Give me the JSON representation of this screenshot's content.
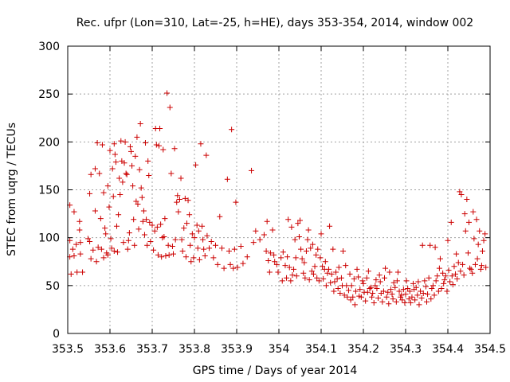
{
  "chart_data": {
    "type": "scatter",
    "title": "Rec. ufpr (Lon=310, Lat=-25, h=HE), days 353-354, 2014, window 002",
    "xlabel": "GPS time / Days of year 2014",
    "ylabel": "STEC from uqrg / TECUs",
    "xlim": [
      353.5,
      354.5
    ],
    "ylim": [
      0,
      300
    ],
    "xticks": [
      "353.5",
      "353.6",
      "353.7",
      "353.8",
      "353.9",
      "354",
      "354.1",
      "354.2",
      "354.3",
      "354.4",
      "354.5"
    ],
    "yticks": [
      "0",
      "50",
      "100",
      "150",
      "200",
      "250",
      "300"
    ],
    "grid": true,
    "marker": "+",
    "color": "#cc0000",
    "points": [
      [
        353.505,
        134
      ],
      [
        353.505,
        97
      ],
      [
        353.505,
        80
      ],
      [
        353.508,
        62
      ],
      [
        353.512,
        88
      ],
      [
        353.515,
        127
      ],
      [
        353.515,
        81
      ],
      [
        353.52,
        93
      ],
      [
        353.522,
        64
      ],
      [
        353.528,
        117
      ],
      [
        353.528,
        108
      ],
      [
        353.53,
        95
      ],
      [
        353.53,
        83
      ],
      [
        353.535,
        64
      ],
      [
        353.548,
        99
      ],
      [
        353.552,
        146
      ],
      [
        353.552,
        96
      ],
      [
        353.555,
        166
      ],
      [
        353.555,
        78
      ],
      [
        353.56,
        87
      ],
      [
        353.565,
        172
      ],
      [
        353.565,
        128
      ],
      [
        353.568,
        75
      ],
      [
        353.57,
        199
      ],
      [
        353.572,
        90
      ],
      [
        353.575,
        167
      ],
      [
        353.578,
        120
      ],
      [
        353.58,
        88
      ],
      [
        353.582,
        197
      ],
      [
        353.585,
        147
      ],
      [
        353.585,
        79
      ],
      [
        353.588,
        110
      ],
      [
        353.59,
        104
      ],
      [
        353.592,
        84
      ],
      [
        353.595,
        154
      ],
      [
        353.595,
        82
      ],
      [
        353.598,
        132
      ],
      [
        353.6,
        191
      ],
      [
        353.602,
        99
      ],
      [
        353.604,
        89
      ],
      [
        353.606,
        172
      ],
      [
        353.608,
        143
      ],
      [
        353.61,
        198
      ],
      [
        353.61,
        86
      ],
      [
        353.612,
        187
      ],
      [
        353.614,
        179
      ],
      [
        353.616,
        112
      ],
      [
        353.618,
        85
      ],
      [
        353.62,
        124
      ],
      [
        353.622,
        162
      ],
      [
        353.624,
        145
      ],
      [
        353.626,
        201
      ],
      [
        353.628,
        180
      ],
      [
        353.63,
        158
      ],
      [
        353.632,
        95
      ],
      [
        353.634,
        178
      ],
      [
        353.636,
        200
      ],
      [
        353.638,
        167
      ],
      [
        353.64,
        166
      ],
      [
        353.642,
        88
      ],
      [
        353.644,
        97
      ],
      [
        353.646,
        105
      ],
      [
        353.648,
        195
      ],
      [
        353.65,
        190
      ],
      [
        353.652,
        175
      ],
      [
        353.654,
        154
      ],
      [
        353.656,
        119
      ],
      [
        353.658,
        92
      ],
      [
        353.66,
        185
      ],
      [
        353.662,
        138
      ],
      [
        353.664,
        205
      ],
      [
        353.666,
        135
      ],
      [
        353.668,
        109
      ],
      [
        353.67,
        171
      ],
      [
        353.672,
        219
      ],
      [
        353.674,
        152
      ],
      [
        353.676,
        142
      ],
      [
        353.678,
        117
      ],
      [
        353.68,
        128
      ],
      [
        353.682,
        103
      ],
      [
        353.684,
        199
      ],
      [
        353.686,
        119
      ],
      [
        353.688,
        92
      ],
      [
        353.69,
        180
      ],
      [
        353.692,
        165
      ],
      [
        353.694,
        116
      ],
      [
        353.696,
        96
      ],
      [
        353.7,
        113
      ],
      [
        353.703,
        87
      ],
      [
        353.706,
        107
      ],
      [
        353.708,
        214
      ],
      [
        353.71,
        197
      ],
      [
        353.712,
        111
      ],
      [
        353.714,
        82
      ],
      [
        353.716,
        196
      ],
      [
        353.718,
        214
      ],
      [
        353.72,
        114
      ],
      [
        353.722,
        80
      ],
      [
        353.724,
        100
      ],
      [
        353.726,
        192
      ],
      [
        353.728,
        101
      ],
      [
        353.73,
        120
      ],
      [
        353.732,
        81
      ],
      [
        353.735,
        251
      ],
      [
        353.738,
        92
      ],
      [
        353.74,
        82
      ],
      [
        353.742,
        236
      ],
      [
        353.745,
        167
      ],
      [
        353.748,
        91
      ],
      [
        353.75,
        83
      ],
      [
        353.753,
        193
      ],
      [
        353.755,
        98
      ],
      [
        353.758,
        137
      ],
      [
        353.76,
        144
      ],
      [
        353.762,
        127
      ],
      [
        353.765,
        140
      ],
      [
        353.768,
        162
      ],
      [
        353.77,
        98
      ],
      [
        353.772,
        86
      ],
      [
        353.775,
        110
      ],
      [
        353.778,
        141
      ],
      [
        353.78,
        80
      ],
      [
        353.782,
        115
      ],
      [
        353.785,
        139
      ],
      [
        353.788,
        124
      ],
      [
        353.79,
        92
      ],
      [
        353.792,
        75
      ],
      [
        353.795,
        104
      ],
      [
        353.798,
        79
      ],
      [
        353.8,
        100
      ],
      [
        353.803,
        176
      ],
      [
        353.806,
        113
      ],
      [
        353.808,
        89
      ],
      [
        353.81,
        107
      ],
      [
        353.812,
        77
      ],
      [
        353.815,
        198
      ],
      [
        353.818,
        112
      ],
      [
        353.82,
        98
      ],
      [
        353.822,
        88
      ],
      [
        353.825,
        81
      ],
      [
        353.828,
        186
      ],
      [
        353.83,
        102
      ],
      [
        353.835,
        89
      ],
      [
        353.84,
        96
      ],
      [
        353.845,
        79
      ],
      [
        353.85,
        92
      ],
      [
        353.855,
        72
      ],
      [
        353.86,
        122
      ],
      [
        353.865,
        89
      ],
      [
        353.87,
        68
      ],
      [
        353.878,
        161
      ],
      [
        353.882,
        86
      ],
      [
        353.885,
        72
      ],
      [
        353.888,
        213
      ],
      [
        353.892,
        68
      ],
      [
        353.895,
        88
      ],
      [
        353.898,
        137
      ],
      [
        353.902,
        69
      ],
      [
        353.91,
        91
      ],
      [
        353.915,
        73
      ],
      [
        353.925,
        80
      ],
      [
        353.935,
        170
      ],
      [
        353.94,
        95
      ],
      [
        353.945,
        107
      ],
      [
        353.955,
        98
      ],
      [
        353.965,
        103
      ],
      [
        353.97,
        86
      ],
      [
        353.972,
        117
      ],
      [
        353.975,
        76
      ],
      [
        353.978,
        64
      ],
      [
        353.98,
        84
      ],
      [
        353.985,
        108
      ],
      [
        353.988,
        82
      ],
      [
        353.99,
        75
      ],
      [
        353.995,
        72
      ],
      [
        353.998,
        64
      ],
      [
        354.005,
        79
      ],
      [
        354.008,
        55
      ],
      [
        354.01,
        85
      ],
      [
        354.015,
        71
      ],
      [
        354.018,
        58
      ],
      [
        354.02,
        80
      ],
      [
        354.022,
        119
      ],
      [
        354.025,
        69
      ],
      [
        354.028,
        55
      ],
      [
        354.03,
        111
      ],
      [
        354.032,
        61
      ],
      [
        354.035,
        67
      ],
      [
        354.038,
        98
      ],
      [
        354.04,
        79
      ],
      [
        354.042,
        60
      ],
      [
        354.045,
        115
      ],
      [
        354.048,
        101
      ],
      [
        354.05,
        118
      ],
      [
        354.052,
        88
      ],
      [
        354.055,
        78
      ],
      [
        354.058,
        63
      ],
      [
        354.06,
        74
      ],
      [
        354.062,
        58
      ],
      [
        354.065,
        86
      ],
      [
        354.068,
        98
      ],
      [
        354.07,
        108
      ],
      [
        354.072,
        56
      ],
      [
        354.075,
        89
      ],
      [
        354.078,
        65
      ],
      [
        354.08,
        93
      ],
      [
        354.082,
        62
      ],
      [
        354.085,
        70
      ],
      [
        354.088,
        82
      ],
      [
        354.09,
        58
      ],
      [
        354.092,
        88
      ],
      [
        354.095,
        55
      ],
      [
        354.098,
        79
      ],
      [
        354.1,
        104
      ],
      [
        354.103,
        70
      ],
      [
        354.105,
        57
      ],
      [
        354.108,
        67
      ],
      [
        354.11,
        75
      ],
      [
        354.112,
        50
      ],
      [
        354.115,
        63
      ],
      [
        354.118,
        67
      ],
      [
        354.12,
        112
      ],
      [
        354.122,
        53
      ],
      [
        354.125,
        62
      ],
      [
        354.128,
        88
      ],
      [
        354.13,
        44
      ],
      [
        354.132,
        54
      ],
      [
        354.135,
        64
      ],
      [
        354.138,
        57
      ],
      [
        354.14,
        47
      ],
      [
        354.142,
        69
      ],
      [
        354.145,
        42
      ],
      [
        354.148,
        58
      ],
      [
        354.15,
        50
      ],
      [
        354.152,
        86
      ],
      [
        354.155,
        40
      ],
      [
        354.158,
        71
      ],
      [
        354.16,
        50
      ],
      [
        354.162,
        38
      ],
      [
        354.165,
        45
      ],
      [
        354.168,
        62
      ],
      [
        354.17,
        35
      ],
      [
        354.172,
        50
      ],
      [
        354.175,
        38
      ],
      [
        354.178,
        57
      ],
      [
        354.18,
        30
      ],
      [
        354.182,
        44
      ],
      [
        354.185,
        67
      ],
      [
        354.188,
        59
      ],
      [
        354.19,
        39
      ],
      [
        354.192,
        46
      ],
      [
        354.195,
        38
      ],
      [
        354.198,
        55
      ],
      [
        354.2,
        52
      ],
      [
        354.202,
        43
      ],
      [
        354.205,
        34
      ],
      [
        354.208,
        58
      ],
      [
        354.21,
        43
      ],
      [
        354.212,
        65
      ],
      [
        354.215,
        47
      ],
      [
        354.218,
        48
      ],
      [
        354.22,
        38
      ],
      [
        354.222,
        42
      ],
      [
        354.225,
        32
      ],
      [
        354.228,
        50
      ],
      [
        354.23,
        56
      ],
      [
        354.232,
        47
      ],
      [
        354.235,
        37
      ],
      [
        354.238,
        61
      ],
      [
        354.24,
        54
      ],
      [
        354.242,
        42
      ],
      [
        354.245,
        33
      ],
      [
        354.248,
        44
      ],
      [
        354.25,
        58
      ],
      [
        354.252,
        68
      ],
      [
        354.255,
        38
      ],
      [
        354.258,
        43
      ],
      [
        354.26,
        31
      ],
      [
        354.262,
        64
      ],
      [
        354.265,
        46
      ],
      [
        354.268,
        41
      ],
      [
        354.27,
        36
      ],
      [
        354.272,
        53
      ],
      [
        354.275,
        48
      ],
      [
        354.278,
        33
      ],
      [
        354.28,
        55
      ],
      [
        354.282,
        64
      ],
      [
        354.285,
        44
      ],
      [
        354.288,
        38
      ],
      [
        354.29,
        40
      ],
      [
        354.292,
        35
      ],
      [
        354.295,
        46
      ],
      [
        354.298,
        32
      ],
      [
        354.3,
        41
      ],
      [
        354.302,
        55
      ],
      [
        354.305,
        47
      ],
      [
        354.308,
        36
      ],
      [
        354.31,
        44
      ],
      [
        354.312,
        32
      ],
      [
        354.315,
        38
      ],
      [
        354.318,
        52
      ],
      [
        354.32,
        46
      ],
      [
        354.322,
        35
      ],
      [
        354.325,
        48
      ],
      [
        354.328,
        40
      ],
      [
        354.33,
        54
      ],
      [
        354.332,
        30
      ],
      [
        354.335,
        44
      ],
      [
        354.338,
        37
      ],
      [
        354.34,
        92
      ],
      [
        354.342,
        42
      ],
      [
        354.345,
        55
      ],
      [
        354.348,
        49
      ],
      [
        354.35,
        33
      ],
      [
        354.352,
        41
      ],
      [
        354.355,
        58
      ],
      [
        354.358,
        92
      ],
      [
        354.36,
        36
      ],
      [
        354.362,
        47
      ],
      [
        354.365,
        50
      ],
      [
        354.368,
        40
      ],
      [
        354.37,
        90
      ],
      [
        354.372,
        55
      ],
      [
        354.375,
        60
      ],
      [
        354.378,
        44
      ],
      [
        354.38,
        68
      ],
      [
        354.382,
        78
      ],
      [
        354.385,
        47
      ],
      [
        354.388,
        63
      ],
      [
        354.39,
        52
      ],
      [
        354.392,
        56
      ],
      [
        354.395,
        60
      ],
      [
        354.398,
        44
      ],
      [
        354.4,
        97
      ],
      [
        354.402,
        66
      ],
      [
        354.405,
        54
      ],
      [
        354.408,
        116
      ],
      [
        354.41,
        60
      ],
      [
        354.412,
        51
      ],
      [
        354.415,
        70
      ],
      [
        354.418,
        62
      ],
      [
        354.42,
        83
      ],
      [
        354.422,
        57
      ],
      [
        354.425,
        74
      ],
      [
        354.428,
        148
      ],
      [
        354.43,
        65
      ],
      [
        354.432,
        145
      ],
      [
        354.435,
        72
      ],
      [
        354.438,
        61
      ],
      [
        354.44,
        125
      ],
      [
        354.442,
        107
      ],
      [
        354.445,
        140
      ],
      [
        354.448,
        84
      ],
      [
        354.45,
        116
      ],
      [
        354.452,
        68
      ],
      [
        354.455,
        67
      ],
      [
        354.458,
        63
      ],
      [
        354.46,
        127
      ],
      [
        354.462,
        99
      ],
      [
        354.465,
        72
      ],
      [
        354.468,
        119
      ],
      [
        354.47,
        78
      ],
      [
        354.472,
        93
      ],
      [
        354.475,
        107
      ],
      [
        354.478,
        67
      ],
      [
        354.48,
        71
      ],
      [
        354.482,
        86
      ],
      [
        354.485,
        97
      ],
      [
        354.488,
        104
      ],
      [
        354.49,
        69
      ]
    ]
  }
}
